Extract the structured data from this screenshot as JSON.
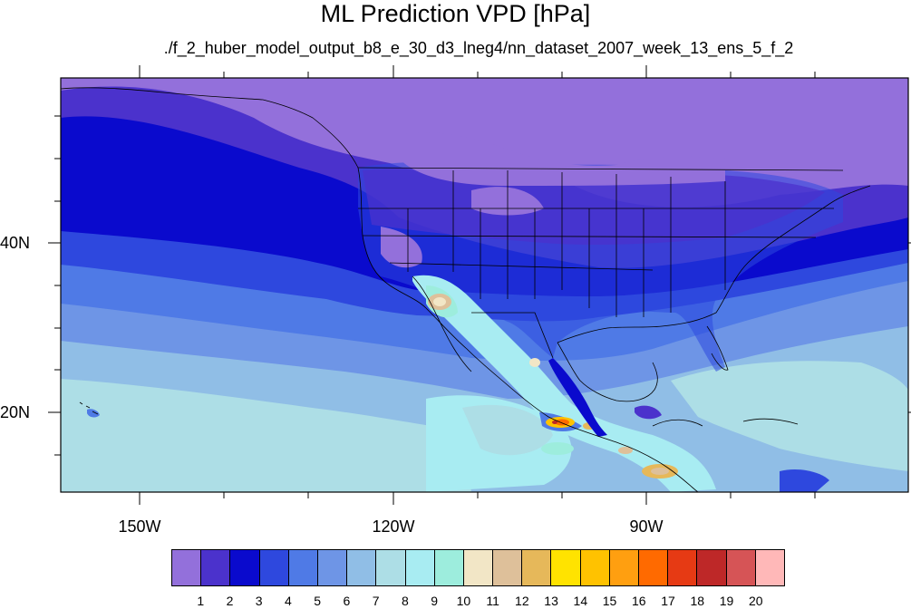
{
  "title": "ML Prediction VPD [hPa]",
  "subtitle": "./f_2_huber_model_output_b8_e_30_d3_lneg4/nn_dataset_2007_week_13_ens_5_f_2",
  "lat_labels": [
    "40N",
    "20N"
  ],
  "lon_labels": [
    "150W",
    "120W",
    "90W"
  ],
  "colorbar": {
    "labels": [
      "1",
      "2",
      "3",
      "4",
      "5",
      "6",
      "7",
      "8",
      "9",
      "10",
      "11",
      "12",
      "13",
      "14",
      "15",
      "16",
      "17",
      "18",
      "19",
      "20"
    ],
    "colors": [
      "#9370DB",
      "#4B32CC",
      "#0A0ACD",
      "#2E48DE",
      "#4F7AE6",
      "#6E95E6",
      "#90BEE6",
      "#ADDEE6",
      "#A8ECF2",
      "#9DEDDD",
      "#F2E6C6",
      "#DEC09A",
      "#E6B85A",
      "#FFE300",
      "#FFC200",
      "#FF9F10",
      "#FF6A00",
      "#E63A14",
      "#BE2828",
      "#D65456",
      "#FFB8B8"
    ]
  },
  "map": {
    "background_color": "#9370DB",
    "field": "VPD",
    "units": "hPa",
    "coastlines": true,
    "political_boundaries": true
  }
}
